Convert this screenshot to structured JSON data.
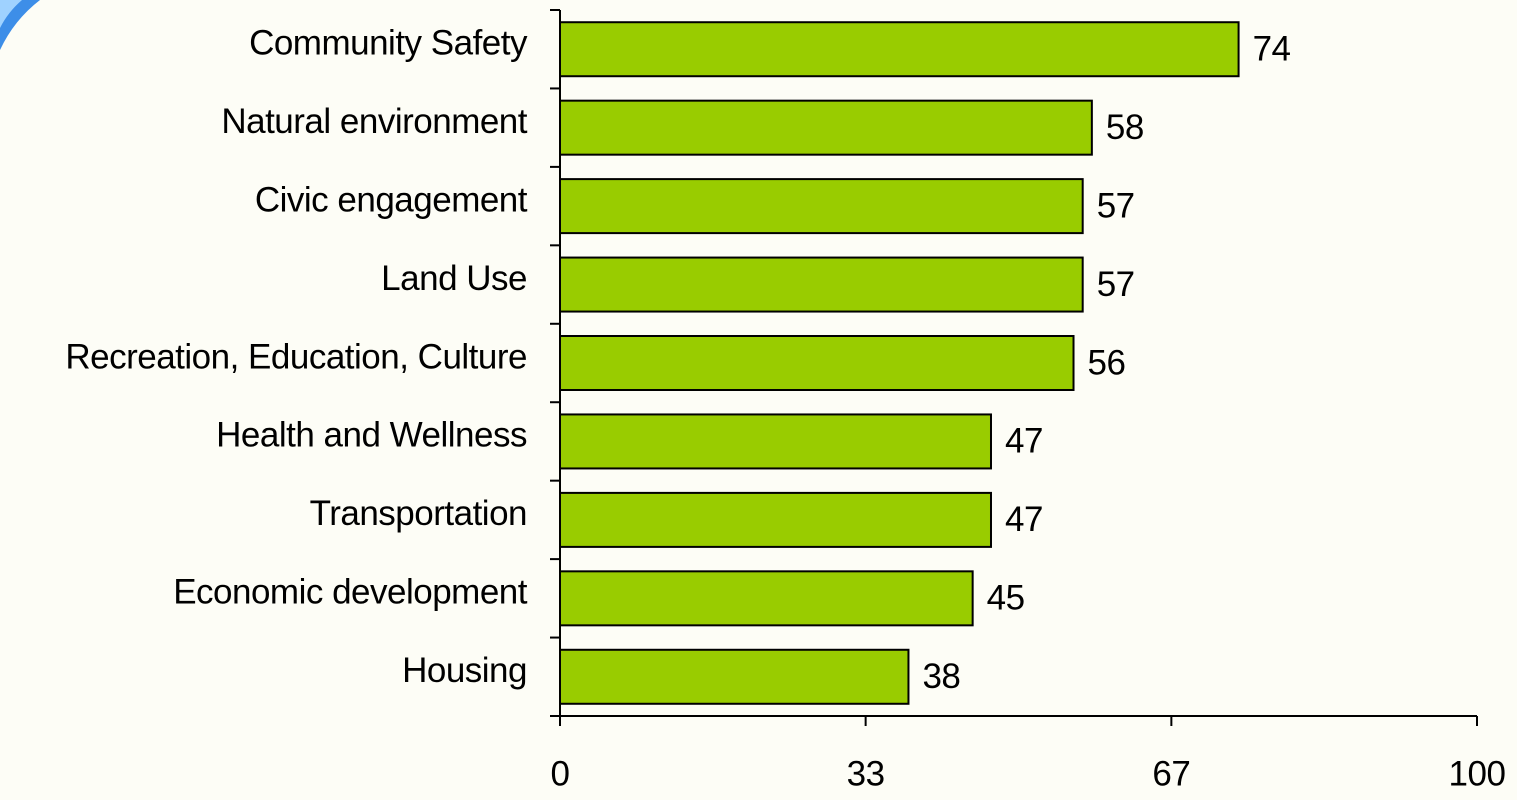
{
  "chart_data": {
    "type": "bar",
    "orientation": "horizontal",
    "categories": [
      "Community Safety",
      "Natural environment",
      "Civic engagement",
      "Land Use",
      "Recreation, Education, Culture",
      "Health and Wellness",
      "Transportation",
      "Economic development",
      "Housing"
    ],
    "values": [
      74,
      58,
      57,
      57,
      56,
      47,
      47,
      45,
      38
    ],
    "color": "#99cc00",
    "xlim": [
      0,
      100
    ],
    "xticks": [
      0,
      {
        "value": 33.33,
        "label": "33"
      },
      {
        "value": 66.67,
        "label": "67"
      },
      100
    ],
    "grid": false
  }
}
